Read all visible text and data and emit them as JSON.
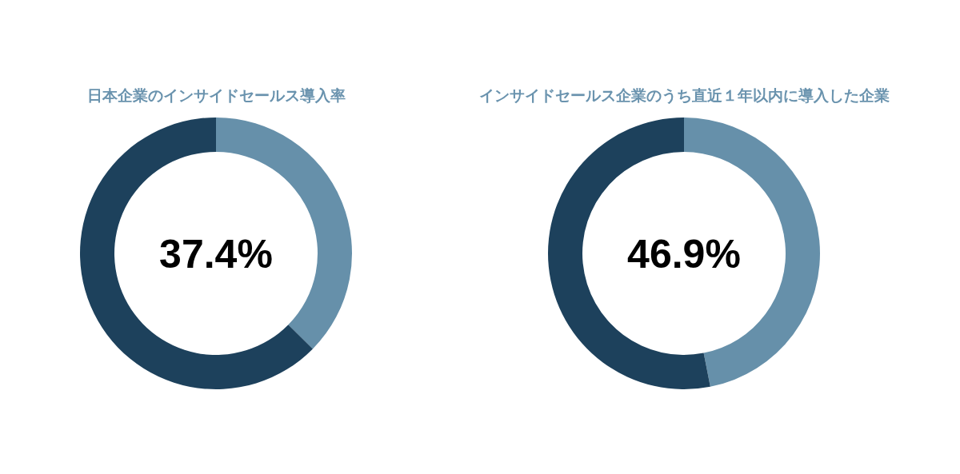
{
  "chart_data": [
    {
      "type": "donut",
      "title": "日本企業のインサイドセールス導入率",
      "categories": [
        null,
        null
      ],
      "values": [
        37.4,
        62.6
      ],
      "colors": [
        "#6690aa",
        "#1d415c"
      ],
      "annotations": [
        "37.4%"
      ]
    },
    {
      "type": "donut",
      "title": "インサイドセールス企業のうち直近１年以内に導入した企業",
      "categories": [
        null,
        null
      ],
      "values": [
        46.9,
        53.1
      ],
      "colors": [
        "#6690aa",
        "#1d415c"
      ],
      "annotations": [
        "46.9%"
      ]
    }
  ]
}
